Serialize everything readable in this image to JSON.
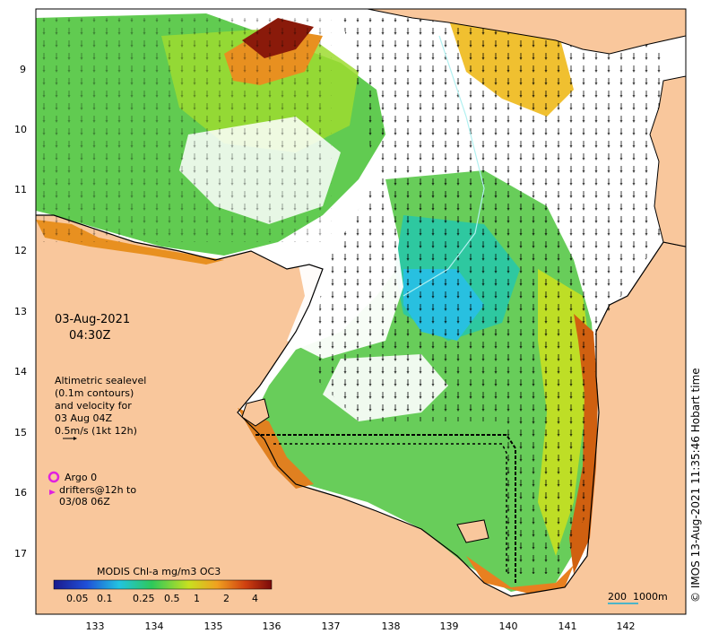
{
  "date": "03-Aug-2021",
  "time": "04:30Z",
  "info_lines": [
    "Altimetric sealevel",
    "(0.1m contours)",
    "and velocity for",
    "03 Aug 04Z",
    "0.5m/s (1kt 12h)"
  ],
  "argo_text": "Argo 0",
  "drifter_lines": [
    "drifters@12h to",
    "03/08 06Z"
  ],
  "colorbar": {
    "title": "MODIS Chl-a mg/m3 OC3",
    "ticks": [
      "0.05",
      "0.1",
      "0.25",
      "0.5",
      "1",
      "2",
      "4"
    ]
  },
  "scale_bar": {
    "label1": "200",
    "label2": "1000m"
  },
  "credit": "© IMOS 13-Aug-2021 11:35:46 Hobart time",
  "lon_ticks": [
    "133",
    "134",
    "135",
    "136",
    "137",
    "138",
    "139",
    "140",
    "141",
    "142"
  ],
  "lat_ticks": [
    "9",
    "10",
    "11",
    "12",
    "13",
    "14",
    "15",
    "16",
    "17"
  ],
  "colors": {
    "land": "#f9c79c",
    "cloud": "#ffffff",
    "argo": "#e020e0",
    "scale_bar": "#4cb4c8"
  }
}
